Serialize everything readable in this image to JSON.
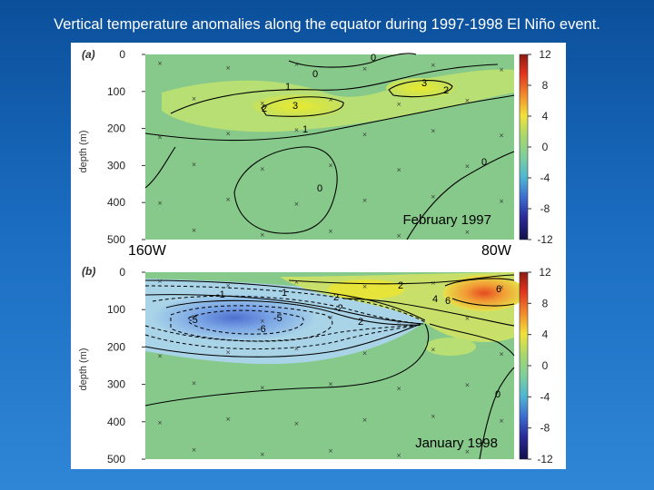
{
  "slide": {
    "title": "Vertical temperature anomalies along the equator during 1997-1998 El Niño event.",
    "label_west": "160W",
    "label_east": "80W"
  },
  "chart_data": [
    {
      "type": "heatmap",
      "panel": "(a)",
      "annotation": "February 1997",
      "ylabel": "depth (m)",
      "y_ticks": [
        0,
        100,
        200,
        300,
        400,
        500
      ],
      "ylim": [
        500,
        0
      ],
      "colorbar_ticks": [
        12,
        8,
        4,
        0,
        -4,
        -8,
        -12
      ],
      "contour_labels": [
        "0",
        "1",
        "3",
        "2",
        "3",
        "2",
        "1",
        "0",
        "0",
        "0"
      ],
      "features": [
        {
          "name": "warm core west",
          "x": "~170W",
          "depth": 100,
          "value": 3
        },
        {
          "name": "warm core east",
          "x": "~115W",
          "depth": 80,
          "value": 3
        },
        {
          "name": "cool pocket",
          "x": "~150W",
          "depth": 350,
          "value": -0.5
        }
      ]
    },
    {
      "type": "heatmap",
      "panel": "(b)",
      "annotation": "January 1998",
      "ylabel": "depth (m)",
      "y_ticks": [
        0,
        100,
        200,
        300,
        400,
        500
      ],
      "ylim": [
        500,
        0
      ],
      "colorbar_ticks": [
        12,
        8,
        4,
        0,
        -4,
        -8,
        -12
      ],
      "contour_labels": [
        "-1",
        "-2",
        "-5",
        "-6",
        "-5",
        "1",
        "2",
        "2",
        "4",
        "6",
        "6",
        "2",
        "0"
      ],
      "features": [
        {
          "name": "cold core west",
          "x": "~155W",
          "depth": 130,
          "value": -6
        },
        {
          "name": "warm core east",
          "x": "~85W",
          "depth": 60,
          "value": 8
        }
      ]
    }
  ],
  "colors": {
    "background": "#1a6cc0",
    "neutral": "#86c98a",
    "warm_yellow": "#e8e23a",
    "warm_orange": "#f08a2a",
    "cold_blue": "#88b4e6"
  }
}
